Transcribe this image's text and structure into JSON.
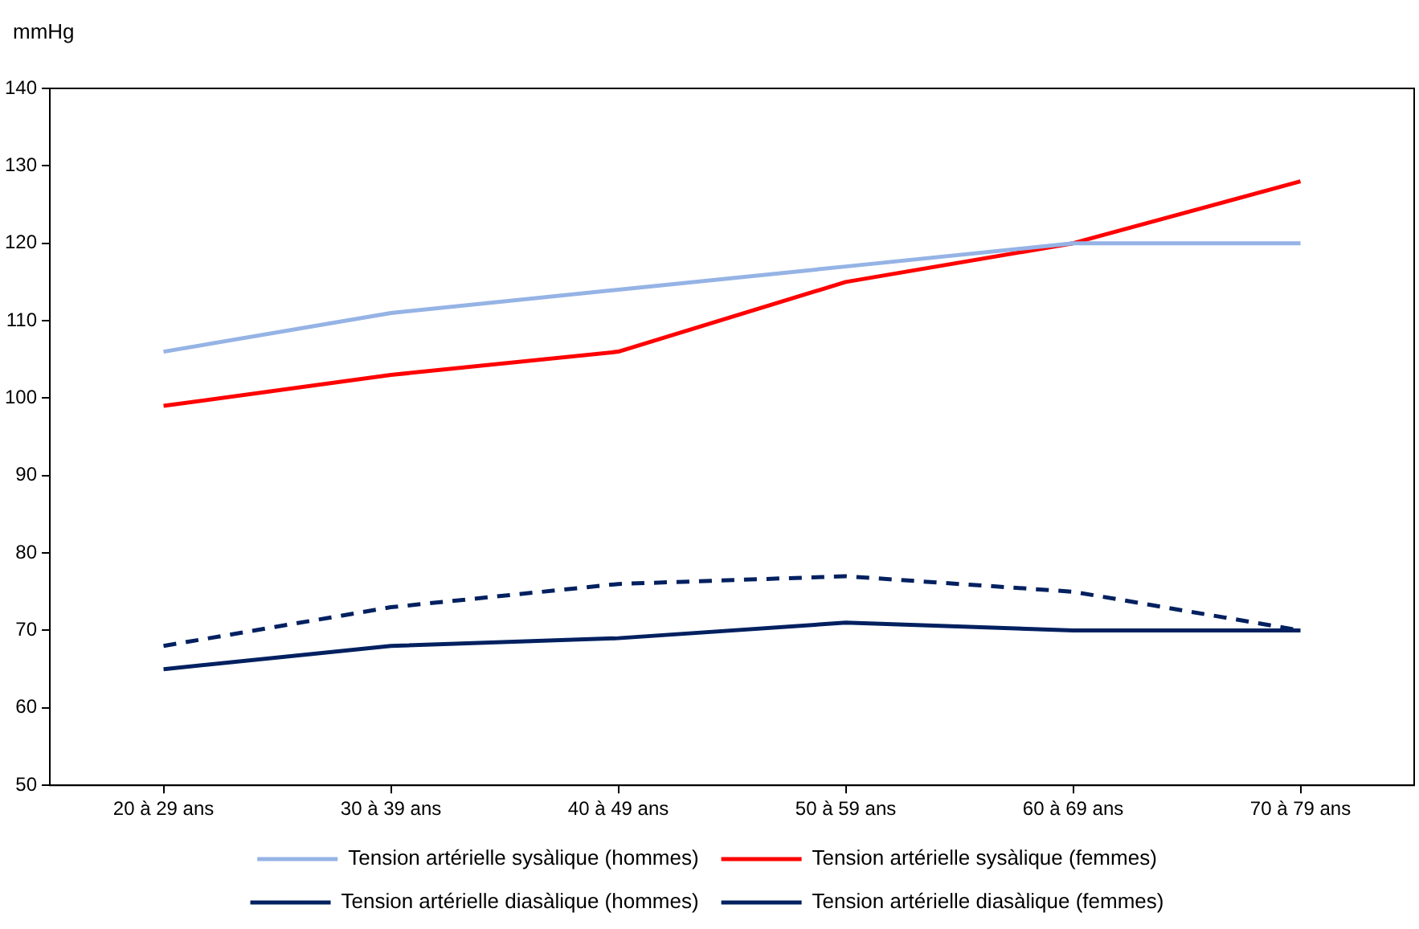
{
  "chart_data": {
    "type": "line",
    "ylabel": "mmHg",
    "categories": [
      "20 à 29 ans",
      "30 à 39 ans",
      "40 à 49 ans",
      "50 à 59 ans",
      "60 à 69 ans",
      "70 à 79 ans"
    ],
    "ylim": [
      50,
      140
    ],
    "yticks": [
      50,
      60,
      70,
      80,
      90,
      100,
      110,
      120,
      130,
      140
    ],
    "grid": false,
    "legend": "bottom",
    "marker": "none",
    "series": [
      {
        "name": "Tension artérielle sysàlique (hommes)",
        "color": "#95b3e5",
        "values": [
          106,
          111,
          114,
          117,
          120,
          120
        ]
      },
      {
        "name": "Tension artérielle sysàlique (femmes)",
        "color": "#ff0000",
        "values": [
          99,
          103,
          106,
          115,
          120,
          128
        ]
      },
      {
        "name": "Tension artérielle diasàlique (hommes)",
        "color": "#002060",
        "values": [
          68,
          73,
          76,
          77,
          75,
          70
        ],
        "line_style": "dashed"
      },
      {
        "name": "Tension artérielle diasàlique (femmes)",
        "color": "#002060",
        "values": [
          65,
          68,
          69,
          71,
          70,
          70
        ]
      }
    ]
  }
}
